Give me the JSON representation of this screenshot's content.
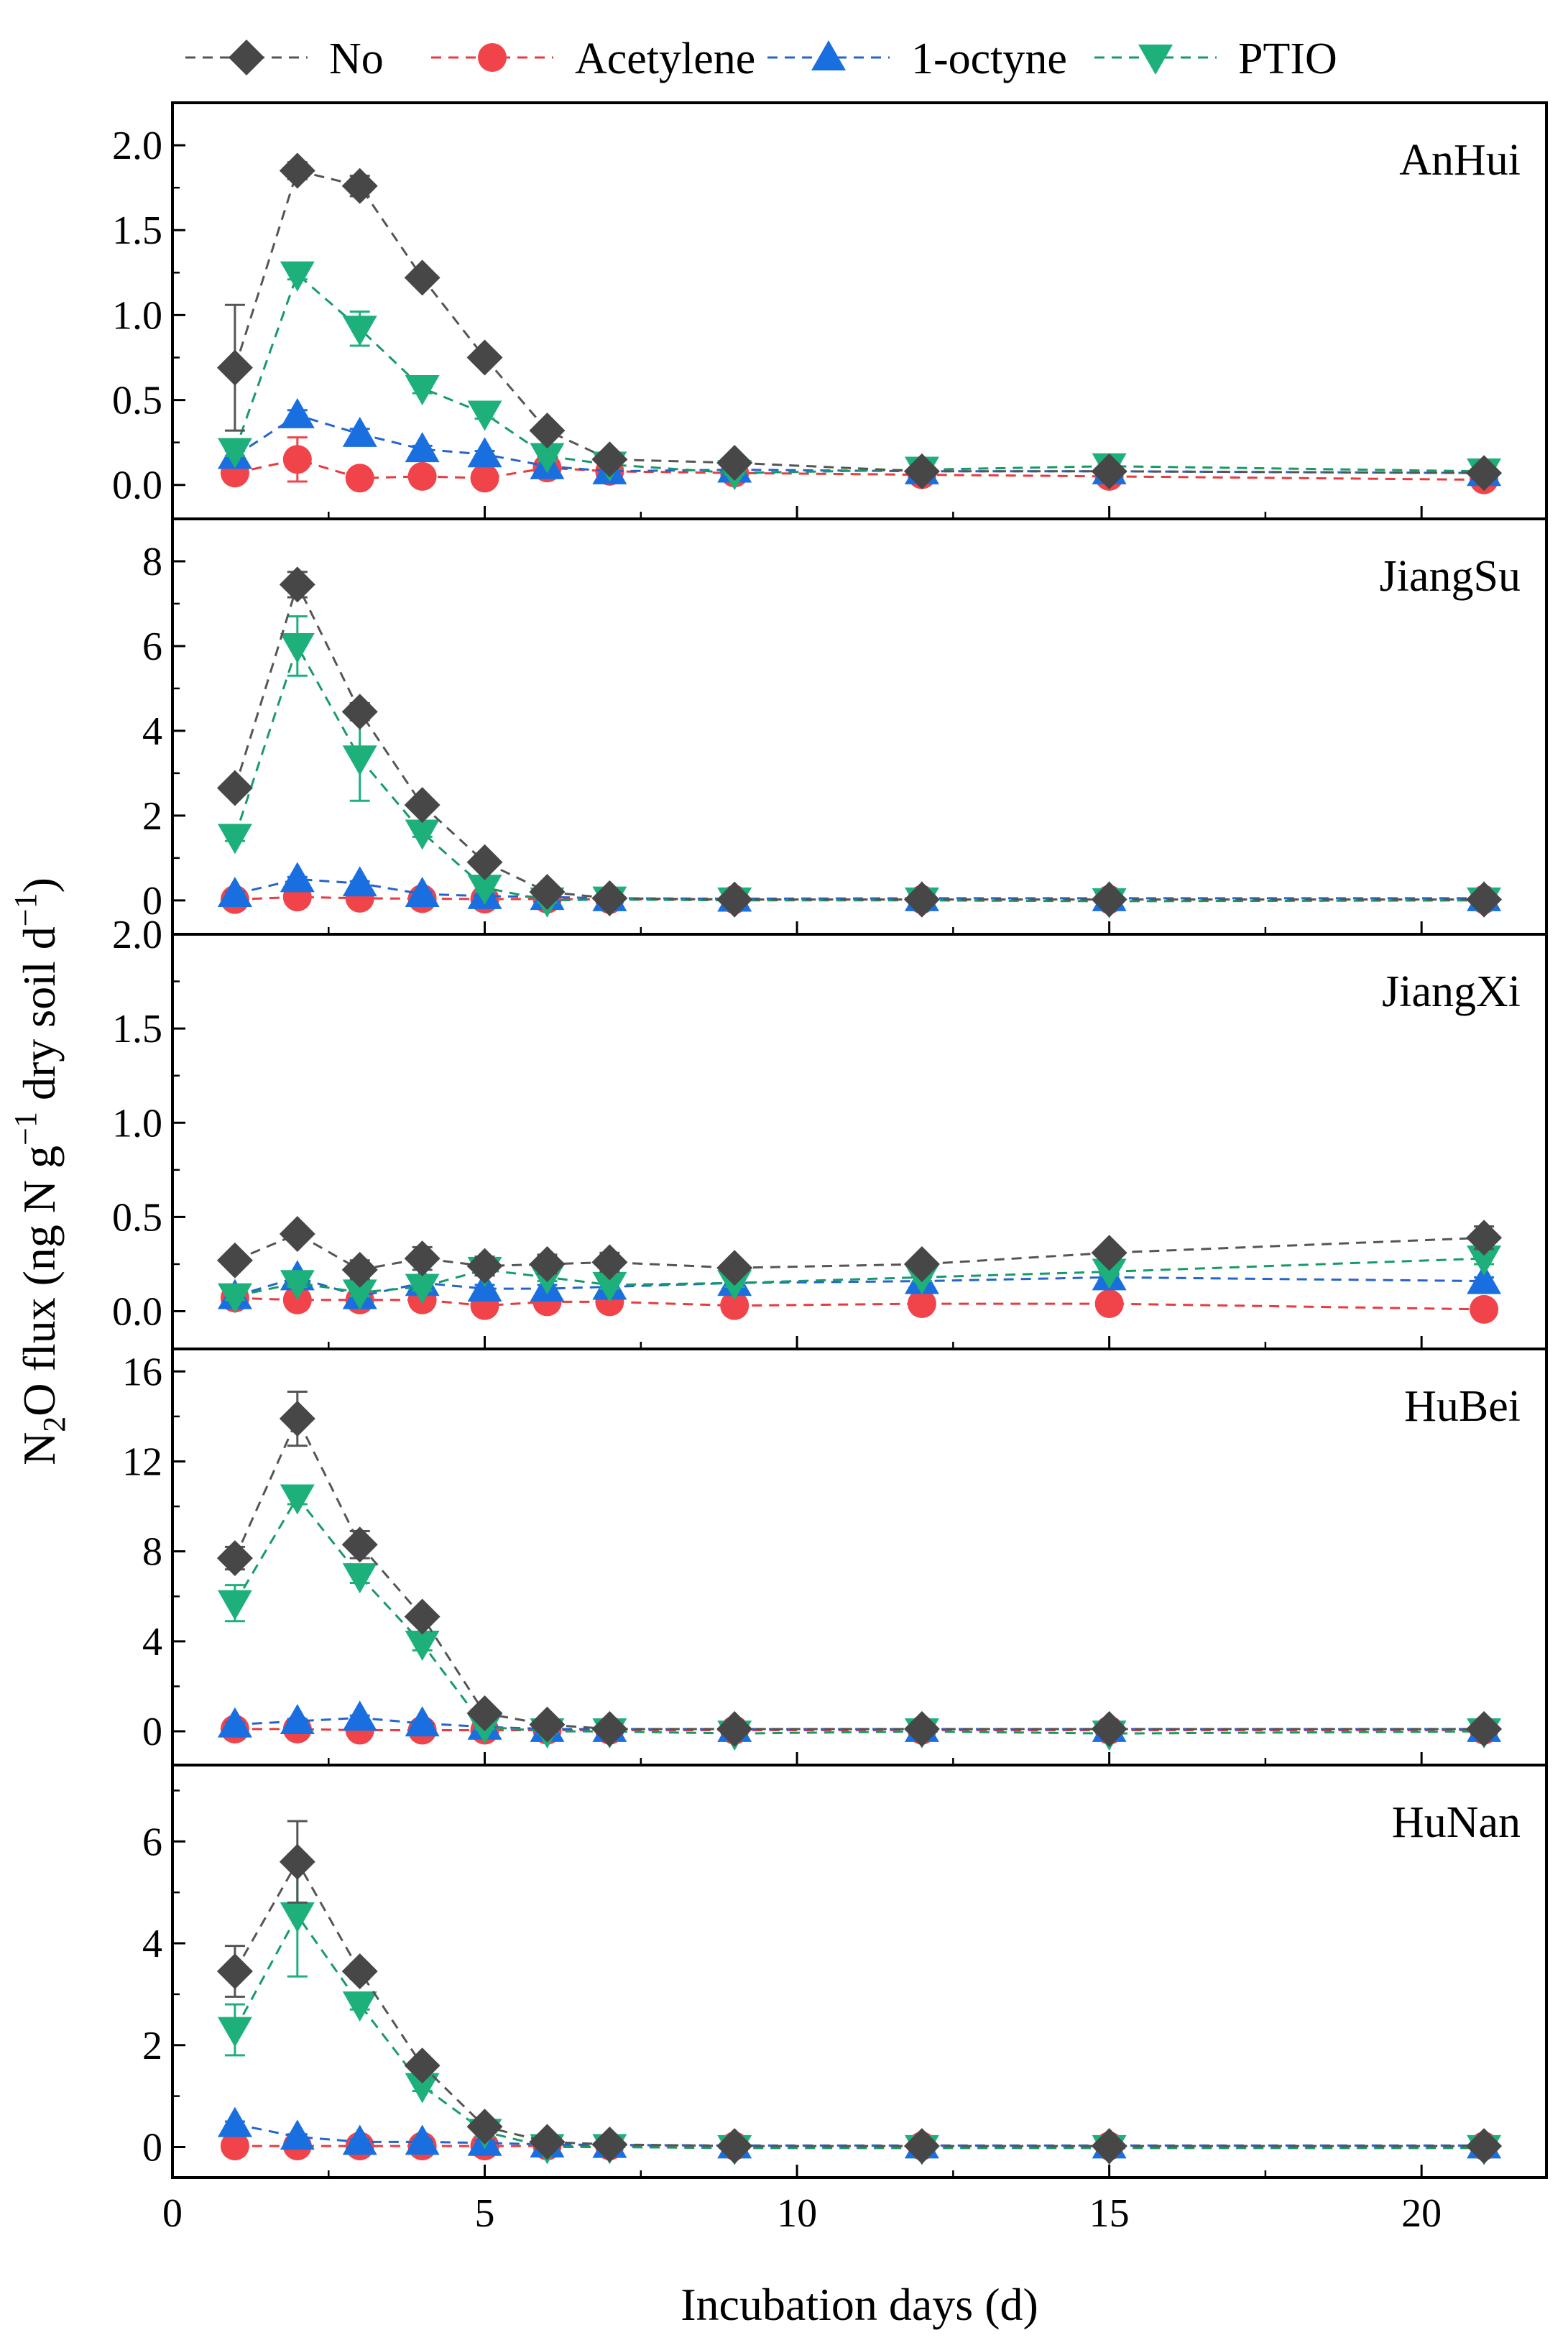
{
  "chart_data": {
    "type": "line",
    "xlabel": "Incubation days (d)",
    "ylabel_parts": [
      "N",
      "2",
      "O flux (ng N g",
      "−1",
      " dry soil d",
      "−1",
      ")"
    ],
    "xlim": [
      0,
      22
    ],
    "x_ticks": [
      0,
      5,
      10,
      15,
      20
    ],
    "x_tick_labels": [
      "0",
      "5",
      "10",
      "15",
      "20"
    ],
    "x": [
      1,
      2,
      3,
      4,
      5,
      6,
      7,
      9,
      12,
      15,
      21
    ],
    "legend": [
      {
        "key": "no",
        "name": "No"
      },
      {
        "key": "acetylene",
        "name": "Acetylene"
      },
      {
        "key": "octyne",
        "name": "1-octyne"
      },
      {
        "key": "ptio",
        "name": "PTIO"
      }
    ],
    "colors": {
      "no": "#474747",
      "acetylene": "#f0444a",
      "octyne": "#1a6fe0",
      "ptio": "#1eb07a",
      "no_line": "#555555",
      "acetylene_line": "#e83b3f",
      "octyne_line": "#2464cc",
      "ptio_line": "#179a6a"
    },
    "panels": [
      {
        "name": "AnHui",
        "ylim": [
          -0.2,
          2.25
        ],
        "y_ticks": [
          0,
          0.5,
          1.0,
          1.5,
          2.0
        ],
        "y_tick_labels": [
          "0.0",
          "0.5",
          "1.0",
          "1.5",
          "2.0"
        ],
        "series": [
          {
            "key": "no",
            "values": [
              0.69,
              1.85,
              1.76,
              1.22,
              0.75,
              0.32,
              0.15,
              0.13,
              0.08,
              0.08,
              0.07
            ],
            "errors": [
              0.37,
              0.05,
              0.06,
              0.03,
              0.03,
              0.03,
              0.02,
              0.02,
              0.01,
              0.01,
              0.01
            ]
          },
          {
            "key": "acetylene",
            "values": [
              0.07,
              0.15,
              0.04,
              0.05,
              0.04,
              0.1,
              0.08,
              0.07,
              0.06,
              0.05,
              0.03
            ],
            "errors": [
              0.02,
              0.13,
              0.01,
              0.01,
              0.01,
              0.02,
              0.01,
              0.01,
              0.01,
              0.01,
              0.01
            ]
          },
          {
            "key": "octyne",
            "values": [
              0.17,
              0.41,
              0.3,
              0.21,
              0.18,
              0.11,
              0.08,
              0.09,
              0.08,
              0.08,
              0.07
            ],
            "errors": [
              0.03,
              0.03,
              0.03,
              0.02,
              0.02,
              0.06,
              0.01,
              0.01,
              0.01,
              0.01,
              0.01
            ]
          },
          {
            "key": "ptio",
            "values": [
              0.2,
              1.24,
              0.92,
              0.57,
              0.42,
              0.17,
              0.12,
              0.07,
              0.09,
              0.11,
              0.08
            ],
            "errors": [
              0.03,
              0.03,
              0.1,
              0.03,
              0.03,
              0.03,
              0.01,
              0.01,
              0.01,
              0.01,
              0.01
            ]
          }
        ]
      },
      {
        "name": "JiangSu",
        "ylim": [
          -0.8,
          9.0
        ],
        "y_ticks": [
          0,
          2,
          4,
          6,
          8
        ],
        "y_tick_labels": [
          "0",
          "2",
          "4",
          "6",
          "8"
        ],
        "series": [
          {
            "key": "no",
            "values": [
              2.65,
              7.45,
              4.45,
              2.25,
              0.9,
              0.2,
              0.05,
              0.02,
              0.02,
              0.02,
              0.02
            ],
            "errors": [
              0.1,
              0.3,
              0.2,
              0.1,
              0.1,
              0.05,
              0.02,
              0.02,
              0.02,
              0.02,
              0.02
            ]
          },
          {
            "key": "acetylene",
            "values": [
              0.02,
              0.08,
              0.05,
              0.04,
              0.03,
              0.03,
              0.02,
              0.02,
              0.02,
              0.02,
              0.02
            ],
            "errors": [
              0.02,
              0.02,
              0.02,
              0.02,
              0.02,
              0.02,
              0.02,
              0.02,
              0.02,
              0.02,
              0.02
            ]
          },
          {
            "key": "octyne",
            "values": [
              0.15,
              0.5,
              0.4,
              0.15,
              0.1,
              0.08,
              0.05,
              0.04,
              0.05,
              0.05,
              0.05
            ],
            "errors": [
              0.05,
              0.05,
              0.05,
              0.05,
              0.05,
              0.03,
              0.02,
              0.02,
              0.02,
              0.02,
              0.02
            ]
          },
          {
            "key": "ptio",
            "values": [
              1.5,
              6.0,
              3.35,
              1.6,
              0.3,
              0.0,
              0.02,
              0.0,
              0.0,
              -0.02,
              0.0
            ],
            "errors": [
              0.1,
              0.7,
              1.0,
              0.1,
              0.1,
              0.05,
              0.02,
              0.02,
              0.02,
              0.02,
              0.02
            ]
          }
        ]
      },
      {
        "name": "JiangXi",
        "ylim": [
          -0.2,
          2.0
        ],
        "y_ticks": [
          0,
          0.5,
          1.0,
          1.5,
          2.0
        ],
        "y_tick_labels": [
          "0.0",
          "0.5",
          "1.0",
          "1.5",
          "2.0"
        ],
        "series": [
          {
            "key": "no",
            "values": [
              0.27,
              0.41,
              0.22,
              0.28,
              0.24,
              0.25,
              0.26,
              0.23,
              0.25,
              0.31,
              0.39
            ],
            "errors": [
              0.03,
              0.03,
              0.05,
              0.06,
              0.05,
              0.05,
              0.05,
              0.03,
              0.03,
              0.03,
              0.06
            ]
          },
          {
            "key": "acetylene",
            "values": [
              0.07,
              0.06,
              0.06,
              0.06,
              0.03,
              0.05,
              0.05,
              0.03,
              0.04,
              0.04,
              0.01
            ],
            "errors": [
              0.01,
              0.01,
              0.01,
              0.01,
              0.01,
              0.01,
              0.01,
              0.01,
              0.01,
              0.01,
              0.01
            ]
          },
          {
            "key": "octyne",
            "values": [
              0.08,
              0.18,
              0.08,
              0.15,
              0.12,
              0.12,
              0.13,
              0.15,
              0.16,
              0.18,
              0.16
            ],
            "errors": [
              0.02,
              0.03,
              0.02,
              0.02,
              0.02,
              0.02,
              0.02,
              0.02,
              0.02,
              0.02,
              0.02
            ]
          },
          {
            "key": "ptio",
            "values": [
              0.08,
              0.15,
              0.1,
              0.13,
              0.22,
              0.18,
              0.14,
              0.15,
              0.18,
              0.21,
              0.28
            ],
            "errors": [
              0.02,
              0.02,
              0.02,
              0.02,
              0.03,
              0.02,
              0.02,
              0.02,
              0.02,
              0.02,
              0.03
            ]
          }
        ]
      },
      {
        "name": "HuBei",
        "ylim": [
          -1.5,
          17.0
        ],
        "y_ticks": [
          0,
          4,
          8,
          12,
          16
        ],
        "y_tick_labels": [
          "0",
          "4",
          "8",
          "12",
          "16"
        ],
        "series": [
          {
            "key": "no",
            "values": [
              7.7,
              13.9,
              8.3,
              5.1,
              0.8,
              0.3,
              0.1,
              0.1,
              0.1,
              0.1,
              0.1
            ],
            "errors": [
              0.5,
              1.2,
              0.6,
              0.3,
              0.2,
              0.1,
              0.1,
              0.1,
              0.1,
              0.1,
              0.1
            ]
          },
          {
            "key": "acetylene",
            "values": [
              0.1,
              0.1,
              0.05,
              0.05,
              0.05,
              0.05,
              0.05,
              0.05,
              0.05,
              0.05,
              0.05
            ],
            "errors": [
              0.05,
              0.05,
              0.05,
              0.05,
              0.05,
              0.05,
              0.05,
              0.05,
              0.05,
              0.05,
              0.05
            ]
          },
          {
            "key": "octyne",
            "values": [
              0.3,
              0.45,
              0.6,
              0.35,
              0.2,
              0.1,
              0.1,
              0.1,
              0.1,
              0.1,
              0.1
            ],
            "errors": [
              0.1,
              0.1,
              0.1,
              0.1,
              0.1,
              0.1,
              0.1,
              0.1,
              0.1,
              0.1,
              0.1
            ]
          },
          {
            "key": "ptio",
            "values": [
              5.7,
              10.4,
              6.9,
              3.9,
              0.2,
              0.0,
              0.0,
              -0.1,
              0.0,
              -0.1,
              0.0
            ],
            "errors": [
              0.8,
              0.3,
              0.3,
              0.3,
              0.1,
              0.1,
              0.1,
              0.1,
              0.1,
              0.1,
              0.1
            ]
          }
        ]
      },
      {
        "name": "HuNan",
        "ylim": [
          -0.6,
          7.5
        ],
        "y_ticks": [
          0,
          2,
          4,
          6
        ],
        "y_tick_labels": [
          "0",
          "2",
          "4",
          "6"
        ],
        "series": [
          {
            "key": "no",
            "values": [
              3.45,
              5.6,
              3.45,
              1.6,
              0.4,
              0.1,
              0.05,
              0.02,
              0.02,
              0.02,
              0.02
            ],
            "errors": [
              0.5,
              0.8,
              0.15,
              0.1,
              0.1,
              0.05,
              0.02,
              0.02,
              0.02,
              0.02,
              0.02
            ]
          },
          {
            "key": "acetylene",
            "values": [
              0.02,
              0.02,
              0.02,
              0.02,
              0.02,
              0.02,
              0.02,
              0.02,
              0.02,
              0.02,
              0.02
            ],
            "errors": [
              0.02,
              0.02,
              0.02,
              0.02,
              0.02,
              0.02,
              0.02,
              0.02,
              0.02,
              0.02,
              0.02
            ]
          },
          {
            "key": "octyne",
            "values": [
              0.45,
              0.2,
              0.1,
              0.1,
              0.08,
              0.05,
              0.04,
              0.03,
              0.03,
              0.03,
              0.03
            ],
            "errors": [
              0.05,
              0.05,
              0.05,
              0.05,
              0.05,
              0.03,
              0.02,
              0.02,
              0.02,
              0.02,
              0.02
            ]
          },
          {
            "key": "ptio",
            "values": [
              2.3,
              4.55,
              2.8,
              1.2,
              0.3,
              0.0,
              0.0,
              -0.02,
              -0.02,
              -0.02,
              -0.02
            ],
            "errors": [
              0.5,
              1.2,
              0.1,
              0.1,
              0.1,
              0.05,
              0.02,
              0.02,
              0.02,
              0.02,
              0.02
            ]
          }
        ]
      }
    ]
  }
}
